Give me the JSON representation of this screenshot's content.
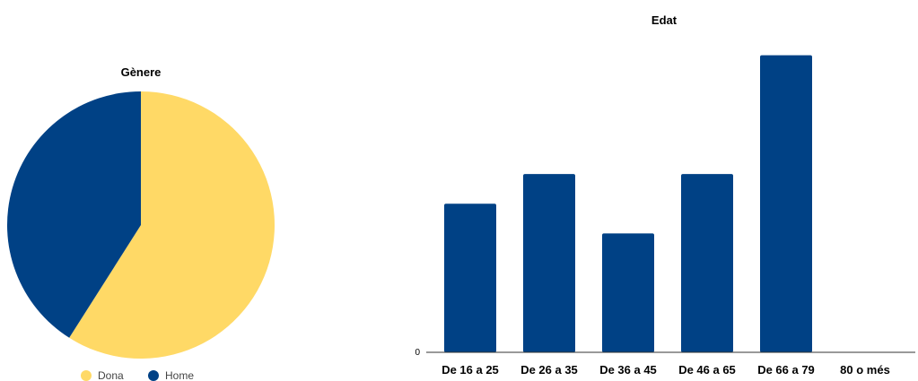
{
  "chart_data": [
    {
      "type": "pie",
      "title": "Gènere",
      "slices": [
        {
          "label": "Dona",
          "value": 0.59,
          "color": "#ffd966"
        },
        {
          "label": "Home",
          "value": 0.41,
          "color": "#004185"
        }
      ],
      "legend_position": "bottom"
    },
    {
      "type": "bar",
      "title": "Edat",
      "categories": [
        "De 16 a 25",
        "De 26 a 35",
        "De 36 a 45",
        "De 46 a 65",
        "De 66 a 79",
        "80 o més"
      ],
      "values": [
        5,
        6,
        4,
        6,
        10,
        0
      ],
      "y_ticks": [
        "0"
      ],
      "ylim": [
        0,
        10.5
      ],
      "color": "#004185",
      "grid": false
    }
  ]
}
